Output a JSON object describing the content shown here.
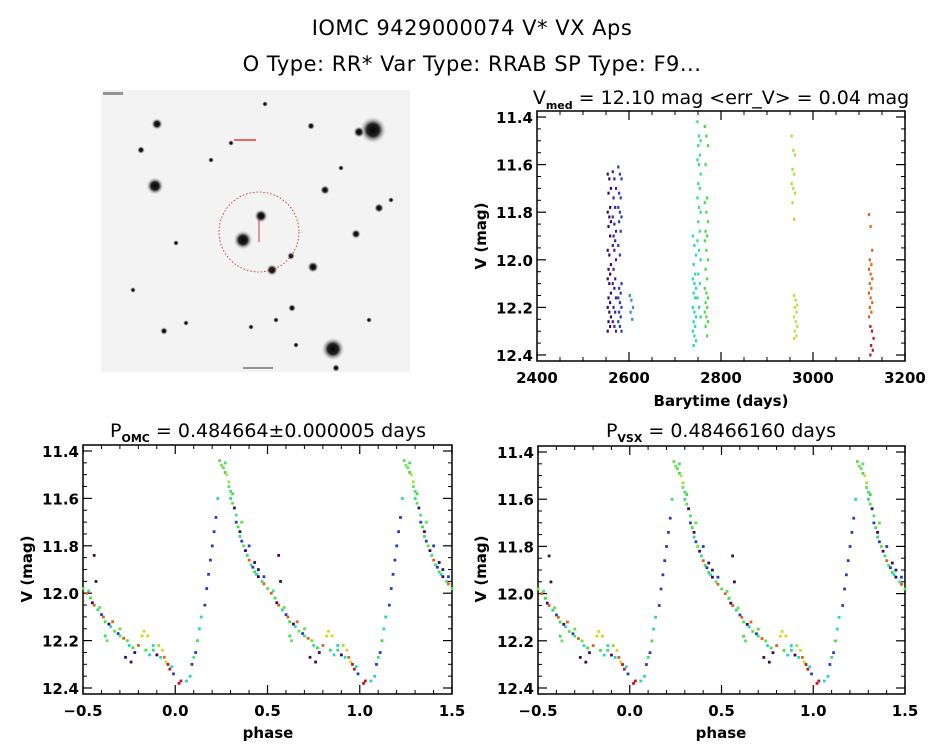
{
  "header": {
    "title_line1": "IOMC 9429000074    V* VX Aps",
    "title_line2": "O Type: RR*   Var Type: RRAB   SP Type: F9..."
  },
  "sky_image": {
    "description": "Sky finding chart, inverted grayscale, target circled in red",
    "circle_color": "#d01010"
  },
  "chart_data": [
    {
      "id": "lightcurve-time",
      "type": "scatter",
      "title_main": "V",
      "title_sub": "med",
      "title_rest": " = 12.10 mag <err_V> = 0.04 mag",
      "xlabel": "Barytime (days)",
      "ylabel": "V (mag)",
      "xlim": [
        2400,
        3200
      ],
      "ylim": [
        12.4,
        11.4
      ],
      "y_inverted": true,
      "xticks": [
        2400,
        2600,
        2800,
        3000,
        3200
      ],
      "xtick_labels": [
        "2400",
        "2600",
        "2800",
        "3000",
        "3200"
      ],
      "yticks": [
        11.4,
        11.6,
        11.8,
        12.0,
        12.2,
        12.4
      ],
      "ytick_labels": [
        "11.4",
        "11.6",
        "11.8",
        "12.0",
        "12.2",
        "12.4"
      ],
      "series": [
        {
          "name": "seg1",
          "x": 2557,
          "color": "#3a0a5a",
          "v": [
            11.64,
            11.66,
            11.7,
            11.72,
            11.78,
            11.8,
            11.82,
            11.84,
            11.86,
            11.9,
            11.96,
            11.98,
            12.02,
            12.04,
            12.06,
            12.08,
            12.1,
            12.14,
            12.16,
            12.18,
            12.2,
            12.22,
            12.24,
            12.26,
            12.28,
            12.3
          ]
        },
        {
          "name": "seg2",
          "x": 2568,
          "color": "#4b1a9a",
          "v": [
            11.63,
            11.66,
            11.7,
            11.74,
            11.78,
            11.82,
            11.85,
            11.88,
            11.9,
            11.92,
            11.94,
            11.96,
            12.0,
            12.04,
            12.08,
            12.1,
            12.12,
            12.16,
            12.2,
            12.22,
            12.26,
            12.28,
            12.3
          ]
        },
        {
          "name": "seg3",
          "x": 2580,
          "color": "#2040c0",
          "v": [
            11.61,
            11.64,
            11.66,
            11.72,
            11.74,
            11.78,
            11.8,
            11.82,
            11.84,
            11.88,
            11.94,
            11.98,
            12.1,
            12.12,
            12.14,
            12.16,
            12.18,
            12.2,
            12.22,
            12.24,
            12.26,
            12.28,
            12.3
          ]
        },
        {
          "name": "seg4",
          "x": 2605,
          "color": "#2a90d0",
          "v": [
            12.15,
            12.17,
            12.2,
            12.22,
            12.25
          ]
        },
        {
          "name": "seg5",
          "x": 2742,
          "color": "#20d8c8",
          "v": [
            11.9,
            11.94,
            11.98,
            12.02,
            12.06,
            12.08,
            12.1,
            12.12,
            12.14,
            12.16,
            12.2,
            12.22,
            12.24,
            12.26,
            12.28,
            12.3,
            12.32,
            12.34,
            12.36
          ]
        },
        {
          "name": "seg6",
          "x": 2752,
          "color": "#30e080",
          "v": [
            11.42,
            11.48,
            11.5,
            11.52,
            11.56,
            11.58,
            11.6,
            11.64,
            11.68,
            11.7,
            11.74,
            11.78,
            11.8,
            11.84,
            11.88,
            11.92,
            11.96,
            12.0,
            12.06,
            12.1,
            12.16,
            12.2,
            12.24
          ]
        },
        {
          "name": "seg7",
          "x": 2768,
          "color": "#40e040",
          "v": [
            11.44,
            11.48,
            11.52,
            11.6,
            11.74,
            11.76,
            11.8,
            11.84,
            11.88,
            11.9,
            11.92,
            11.96,
            12.0,
            12.04,
            12.08,
            12.12,
            12.14,
            12.16,
            12.18,
            12.2,
            12.22,
            12.24,
            12.26,
            12.28,
            12.32
          ]
        },
        {
          "name": "seg8",
          "x": 2957,
          "color": "#a8e030",
          "v": [
            11.48,
            11.54,
            11.56,
            11.62,
            11.64,
            11.68,
            11.7,
            11.72,
            11.76,
            11.83
          ]
        },
        {
          "name": "seg9",
          "x": 2962,
          "color": "#b8e040",
          "v": [
            12.15,
            12.17,
            12.19,
            12.2,
            12.22,
            12.24,
            12.26,
            12.28,
            12.3,
            12.32,
            12.33
          ]
        },
        {
          "name": "seg10",
          "x": 3125,
          "color": "#e06018",
          "v": [
            11.81,
            11.86,
            11.96,
            12.0,
            12.02,
            12.04,
            12.06,
            12.08,
            12.1,
            12.12,
            12.14,
            12.16,
            12.18,
            12.2,
            12.22,
            12.24
          ]
        },
        {
          "name": "seg11",
          "x": 3128,
          "color": "#c01818",
          "v": [
            12.28,
            12.3,
            12.33,
            12.36,
            12.38,
            12.4
          ]
        }
      ]
    },
    {
      "id": "phase-omc",
      "type": "scatter",
      "title_main": "P",
      "title_sub": "OMC",
      "title_rest": " = 0.484664±0.000005 days",
      "xlabel": "phase",
      "ylabel": "V (mag)",
      "xlim": [
        -0.5,
        1.5
      ],
      "ylim": [
        12.4,
        11.4
      ],
      "y_inverted": true,
      "xticks": [
        -0.5,
        0.0,
        0.5,
        1.0,
        1.5
      ],
      "xtick_labels": [
        "−0.5",
        "0.0",
        "0.5",
        "1.0",
        "1.5"
      ],
      "yticks": [
        11.4,
        11.6,
        11.8,
        12.0,
        12.2,
        12.4
      ],
      "ytick_labels": [
        "11.4",
        "11.6",
        "11.8",
        "12.0",
        "12.2",
        "12.4"
      ],
      "period_days": 0.484664,
      "period_err_days": 5e-06
    },
    {
      "id": "phase-vsx",
      "type": "scatter",
      "title_main": "P",
      "title_sub": "VSX",
      "title_rest": " = 0.48466160 days",
      "xlabel": "phase",
      "ylabel": "V (mag)",
      "xlim": [
        -0.5,
        1.5
      ],
      "ylim": [
        12.4,
        11.4
      ],
      "y_inverted": true,
      "xticks": [
        -0.5,
        0.0,
        0.5,
        1.0,
        1.5
      ],
      "xtick_labels": [
        "−0.5",
        "0.0",
        "0.5",
        "1.0",
        "1.5"
      ],
      "yticks": [
        11.4,
        11.6,
        11.8,
        12.0,
        12.2,
        12.4
      ],
      "ytick_labels": [
        "11.4",
        "11.6",
        "11.8",
        "12.0",
        "12.2",
        "12.4"
      ],
      "period_days": 0.4846616
    }
  ],
  "phase_curve": {
    "description": "Folded light curve points [phase 0-1, V mag, color]; plotted repeated over -0.5..1.5",
    "points": [
      [
        0.24,
        11.44,
        "#60e040"
      ],
      [
        0.25,
        11.46,
        "#80e040"
      ],
      [
        0.26,
        11.47,
        "#60e060"
      ],
      [
        0.27,
        11.49,
        "#40e040"
      ],
      [
        0.28,
        11.5,
        "#c0e040"
      ],
      [
        0.29,
        11.53,
        "#a0e030"
      ],
      [
        0.29,
        11.55,
        "#60e060"
      ],
      [
        0.3,
        11.57,
        "#40e080"
      ],
      [
        0.3,
        11.6,
        "#30d890"
      ],
      [
        0.31,
        11.62,
        "#60e040"
      ],
      [
        0.32,
        11.64,
        "#202060"
      ],
      [
        0.33,
        11.67,
        "#40e080"
      ],
      [
        0.33,
        11.7,
        "#2040c0"
      ],
      [
        0.34,
        11.72,
        "#40e040"
      ],
      [
        0.35,
        11.74,
        "#3a0a5a"
      ],
      [
        0.35,
        11.76,
        "#30d890"
      ],
      [
        0.36,
        11.78,
        "#2040c0"
      ],
      [
        0.37,
        11.8,
        "#60e040"
      ],
      [
        0.38,
        11.82,
        "#3a0a5a"
      ],
      [
        0.39,
        11.84,
        "#30d890"
      ],
      [
        0.4,
        11.86,
        "#e06018"
      ],
      [
        0.41,
        11.88,
        "#40e080"
      ],
      [
        0.42,
        11.89,
        "#2040c0"
      ],
      [
        0.43,
        11.91,
        "#40e040"
      ],
      [
        0.44,
        11.92,
        "#20d8c8"
      ],
      [
        0.45,
        11.93,
        "#3a0a5a"
      ],
      [
        0.47,
        11.95,
        "#40e080"
      ],
      [
        0.48,
        11.96,
        "#e06018"
      ],
      [
        0.5,
        11.98,
        "#60e040"
      ],
      [
        0.52,
        12.0,
        "#e06018"
      ],
      [
        0.54,
        12.02,
        "#40e040"
      ],
      [
        0.55,
        12.04,
        "#3a0a5a"
      ],
      [
        0.56,
        12.05,
        "#e06018"
      ],
      [
        0.58,
        12.07,
        "#30d890"
      ],
      [
        0.6,
        12.09,
        "#2040c0"
      ],
      [
        0.61,
        12.1,
        "#e06018"
      ],
      [
        0.62,
        12.12,
        "#40e040"
      ],
      [
        0.64,
        12.13,
        "#3a0a5a"
      ],
      [
        0.65,
        12.14,
        "#20d8c8"
      ],
      [
        0.67,
        12.16,
        "#60e040"
      ],
      [
        0.69,
        12.17,
        "#2040c0"
      ],
      [
        0.7,
        12.18,
        "#40e080"
      ],
      [
        0.72,
        12.19,
        "#e06018"
      ],
      [
        0.74,
        12.2,
        "#60e040"
      ],
      [
        0.75,
        12.22,
        "#20d8c8"
      ],
      [
        0.77,
        12.23,
        "#40e040"
      ],
      [
        0.78,
        12.25,
        "#3a0a5a"
      ],
      [
        0.8,
        12.22,
        "#e06018"
      ],
      [
        0.82,
        12.18,
        "#e0d020"
      ],
      [
        0.83,
        12.16,
        "#e0d020"
      ],
      [
        0.84,
        12.24,
        "#40e040"
      ],
      [
        0.86,
        12.26,
        "#20d8c8"
      ],
      [
        0.88,
        12.24,
        "#30d890"
      ],
      [
        0.9,
        12.26,
        "#3a0a5a"
      ],
      [
        0.91,
        12.22,
        "#a0e030"
      ],
      [
        0.93,
        12.24,
        "#e0d020"
      ],
      [
        0.94,
        12.27,
        "#e06018"
      ],
      [
        0.95,
        12.29,
        "#e0d020"
      ],
      [
        0.96,
        12.3,
        "#c01818"
      ],
      [
        0.97,
        12.32,
        "#c01818"
      ],
      [
        0.98,
        12.31,
        "#20d8c8"
      ],
      [
        0.99,
        12.34,
        "#2040c0"
      ],
      [
        0.02,
        12.38,
        "#c01818"
      ],
      [
        0.03,
        12.37,
        "#c01818"
      ],
      [
        0.06,
        12.37,
        "#20d8c8"
      ],
      [
        0.08,
        12.35,
        "#20d8c8"
      ],
      [
        0.09,
        12.3,
        "#2040c0"
      ],
      [
        0.1,
        12.27,
        "#40e080"
      ],
      [
        0.11,
        12.25,
        "#2040c0"
      ],
      [
        0.12,
        12.2,
        "#40e040"
      ],
      [
        0.13,
        12.15,
        "#20d8c8"
      ],
      [
        0.14,
        12.1,
        "#20d8c8"
      ],
      [
        0.16,
        12.05,
        "#2040c0"
      ],
      [
        0.17,
        11.98,
        "#2040c0"
      ],
      [
        0.18,
        11.92,
        "#2040c0"
      ],
      [
        0.19,
        11.86,
        "#2040c0"
      ],
      [
        0.2,
        11.8,
        "#2040c0"
      ],
      [
        0.21,
        11.74,
        "#2040c0"
      ],
      [
        0.22,
        11.68,
        "#2040c0"
      ],
      [
        0.23,
        11.6,
        "#30d890"
      ],
      [
        0.56,
        11.84,
        "#3a0a5a"
      ],
      [
        0.57,
        11.95,
        "#3a0a5a"
      ],
      [
        0.73,
        12.27,
        "#3a0a5a"
      ],
      [
        0.85,
        12.18,
        "#e0d020"
      ],
      [
        0.62,
        12.18,
        "#40e040"
      ],
      [
        0.63,
        12.2,
        "#60e060"
      ],
      [
        0.76,
        12.29,
        "#3a0a5a"
      ],
      [
        0.88,
        12.22,
        "#20d8c8"
      ],
      [
        0.45,
        11.9,
        "#202060"
      ],
      [
        0.4,
        11.8,
        "#2040c0"
      ],
      [
        0.36,
        11.7,
        "#60e040"
      ],
      [
        0.31,
        11.58,
        "#40e040"
      ],
      [
        0.27,
        11.45,
        "#40e080"
      ],
      [
        0.7,
        12.15,
        "#60e040"
      ],
      [
        0.66,
        12.12,
        "#e06018"
      ],
      [
        0.53,
        11.99,
        "#40e080"
      ],
      [
        0.59,
        12.06,
        "#60e040"
      ],
      [
        0.48,
        11.93,
        "#2040c0"
      ],
      [
        0.43,
        11.87,
        "#3a0a5a"
      ],
      [
        0.92,
        12.27,
        "#20d8c8"
      ]
    ]
  }
}
